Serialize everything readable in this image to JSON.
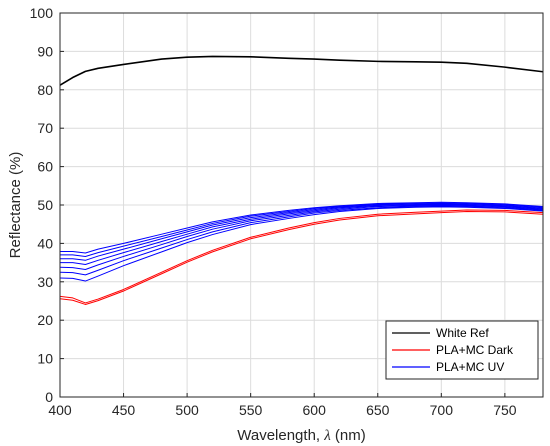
{
  "chart_data": {
    "type": "line",
    "xlabel_prefix": "Wavelength, ",
    "xlabel_symbol": "λ",
    "xlabel_suffix": " (nm)",
    "ylabel": "Reflectance (%)",
    "xlim": [
      400,
      780
    ],
    "ylim": [
      0,
      100
    ],
    "xticks": [
      400,
      450,
      500,
      550,
      600,
      650,
      700,
      750
    ],
    "yticks": [
      0,
      10,
      20,
      30,
      40,
      50,
      60,
      70,
      80,
      90,
      100
    ],
    "grid": true,
    "legend_position": "bottom-right",
    "x": [
      400,
      410,
      420,
      430,
      450,
      480,
      500,
      520,
      550,
      580,
      600,
      620,
      650,
      680,
      700,
      720,
      750,
      780
    ],
    "series": [
      {
        "name": "White Ref",
        "color": "#000000",
        "legend": true,
        "values": [
          81.2,
          83.2,
          84.8,
          85.6,
          86.6,
          88.0,
          88.5,
          88.7,
          88.6,
          88.2,
          88.0,
          87.7,
          87.4,
          87.3,
          87.2,
          86.9,
          85.9,
          84.7
        ]
      },
      {
        "name": "PLA+MC Dark",
        "color": "#ff0000",
        "legend": true,
        "values": [
          26.2,
          25.8,
          24.5,
          25.5,
          28.0,
          32.5,
          35.5,
          38.2,
          41.6,
          44.0,
          45.4,
          46.5,
          47.6,
          48.1,
          48.4,
          48.7,
          48.6,
          48.0
        ]
      },
      {
        "name": "",
        "color": "#ff0000",
        "legend": false,
        "values": [
          25.6,
          25.2,
          24.1,
          25.1,
          27.6,
          32.1,
          35.1,
          37.8,
          41.2,
          43.6,
          45.0,
          46.1,
          47.2,
          47.7,
          48.0,
          48.3,
          48.2,
          47.6
        ]
      },
      {
        "name": "PLA+MC UV",
        "color": "#0000ff",
        "legend": true,
        "values": [
          37.9,
          37.9,
          37.5,
          38.5,
          40.0,
          42.4,
          44.0,
          45.6,
          47.4,
          48.6,
          49.3,
          49.8,
          50.4,
          50.6,
          50.7,
          50.6,
          50.3,
          49.6
        ]
      },
      {
        "name": "",
        "color": "#0000ff",
        "legend": false,
        "values": [
          37.0,
          37.0,
          36.6,
          37.6,
          39.3,
          41.8,
          43.5,
          45.2,
          47.1,
          48.3,
          49.1,
          49.6,
          50.2,
          50.4,
          50.5,
          50.4,
          50.1,
          49.4
        ]
      },
      {
        "name": "",
        "color": "#0000ff",
        "legend": false,
        "values": [
          36.0,
          36.0,
          35.6,
          36.7,
          38.5,
          41.2,
          43.0,
          44.8,
          46.7,
          48.0,
          48.8,
          49.4,
          50.0,
          50.2,
          50.3,
          50.2,
          49.9,
          49.2
        ]
      },
      {
        "name": "",
        "color": "#0000ff",
        "legend": false,
        "values": [
          35.0,
          35.0,
          34.5,
          35.6,
          37.6,
          40.5,
          42.4,
          44.3,
          46.3,
          47.7,
          48.5,
          49.2,
          49.8,
          50.0,
          50.1,
          50.0,
          49.7,
          49.0
        ]
      },
      {
        "name": "",
        "color": "#0000ff",
        "legend": false,
        "values": [
          33.8,
          33.7,
          33.2,
          34.4,
          36.6,
          39.7,
          41.8,
          43.7,
          45.9,
          47.3,
          48.2,
          48.9,
          49.6,
          49.8,
          49.9,
          49.8,
          49.5,
          48.8
        ]
      },
      {
        "name": "",
        "color": "#0000ff",
        "legend": false,
        "values": [
          32.5,
          32.4,
          31.8,
          33.0,
          35.5,
          38.8,
          41.0,
          43.0,
          45.4,
          46.9,
          47.9,
          48.6,
          49.3,
          49.6,
          49.7,
          49.6,
          49.3,
          48.6
        ]
      },
      {
        "name": "",
        "color": "#0000ff",
        "legend": false,
        "values": [
          31.0,
          30.9,
          30.2,
          31.5,
          34.2,
          37.8,
          40.2,
          42.3,
          44.9,
          46.5,
          47.5,
          48.3,
          49.1,
          49.4,
          49.5,
          49.4,
          49.1,
          48.4
        ]
      }
    ],
    "legend": [
      "White Ref",
      "PLA+MC Dark",
      "PLA+MC UV"
    ]
  }
}
